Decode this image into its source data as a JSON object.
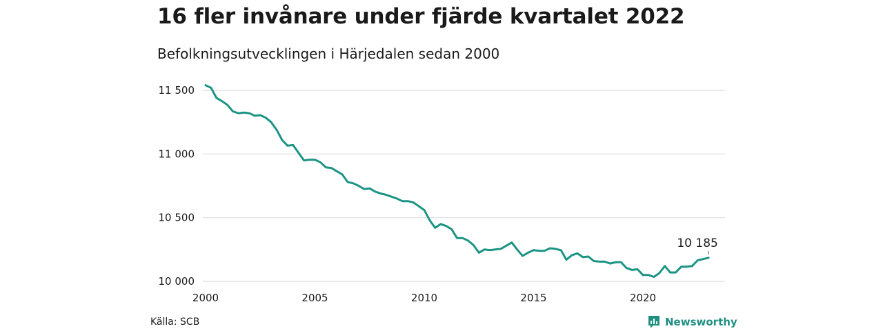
{
  "title": "16 fler invånare under fjärde kvartalet 2022",
  "subtitle": "Befolkningsutvecklingen i Härjedalen sedan 2000",
  "source": "Källa: SCB",
  "brand": {
    "name": "Newsworthy",
    "icon": "newsworthy-logo-icon",
    "color": "#1f8f82"
  },
  "chart_data": {
    "type": "line",
    "line_color": "#1b9484",
    "grid": true,
    "xlim": [
      2000,
      2023.5
    ],
    "ylim": [
      10000,
      11500
    ],
    "x_ticks": [
      2000,
      2005,
      2010,
      2015,
      2020
    ],
    "x_tick_labels": [
      "2000",
      "2005",
      "2010",
      "2015",
      "2020"
    ],
    "y_ticks": [
      10000,
      10500,
      11000,
      11500
    ],
    "y_tick_labels": [
      "10 000",
      "10 500",
      "11 000",
      "11 500"
    ],
    "annotation": {
      "label": "10 185",
      "x": 2023.0,
      "y": 10185
    },
    "series": [
      {
        "x": [
          2000.0,
          2000.25,
          2000.5,
          2000.75,
          2001.0,
          2001.25,
          2001.5,
          2001.75,
          2002.0,
          2002.25,
          2002.5,
          2002.75,
          2003.0,
          2003.25,
          2003.5,
          2003.75,
          2004.0,
          2004.25,
          2004.5,
          2004.75,
          2005.0,
          2005.25,
          2005.5,
          2005.75,
          2006.0,
          2006.25,
          2006.5,
          2006.75,
          2007.0,
          2007.25,
          2007.5,
          2007.75,
          2008.0,
          2008.25,
          2008.5,
          2008.75,
          2009.0,
          2009.25,
          2009.5,
          2009.75,
          2010.0,
          2010.25,
          2010.5,
          2010.75,
          2011.0,
          2011.25,
          2011.5,
          2011.75,
          2012.0,
          2012.25,
          2012.5,
          2012.75,
          2013.0,
          2013.25,
          2013.5,
          2013.75,
          2014.0,
          2014.25,
          2014.5,
          2014.75,
          2015.0,
          2015.25,
          2015.5,
          2015.75,
          2016.0,
          2016.25,
          2016.5,
          2016.75,
          2017.0,
          2017.25,
          2017.5,
          2017.75,
          2018.0,
          2018.25,
          2018.5,
          2018.75,
          2019.0,
          2019.25,
          2019.5,
          2019.75,
          2020.0,
          2020.25,
          2020.5,
          2020.75,
          2021.0,
          2021.25,
          2021.5,
          2021.75,
          2022.0,
          2022.25,
          2022.5,
          2022.75,
          2023.0
        ],
        "values": [
          11540,
          11520,
          11440,
          11415,
          11385,
          11335,
          11320,
          11325,
          11320,
          11300,
          11305,
          11285,
          11250,
          11190,
          11110,
          11065,
          11070,
          11010,
          10950,
          10955,
          10955,
          10935,
          10895,
          10890,
          10865,
          10840,
          10780,
          10770,
          10750,
          10725,
          10730,
          10705,
          10690,
          10680,
          10665,
          10650,
          10630,
          10630,
          10620,
          10590,
          10560,
          10480,
          10420,
          10450,
          10435,
          10410,
          10340,
          10340,
          10320,
          10285,
          10225,
          10250,
          10245,
          10250,
          10255,
          10280,
          10305,
          10250,
          10200,
          10225,
          10245,
          10240,
          10240,
          10260,
          10255,
          10245,
          10170,
          10205,
          10220,
          10190,
          10195,
          10160,
          10155,
          10155,
          10140,
          10150,
          10150,
          10105,
          10090,
          10095,
          10050,
          10050,
          10035,
          10065,
          10120,
          10070,
          10070,
          10115,
          10115,
          10120,
          10165,
          10175,
          10185
        ]
      }
    ]
  }
}
